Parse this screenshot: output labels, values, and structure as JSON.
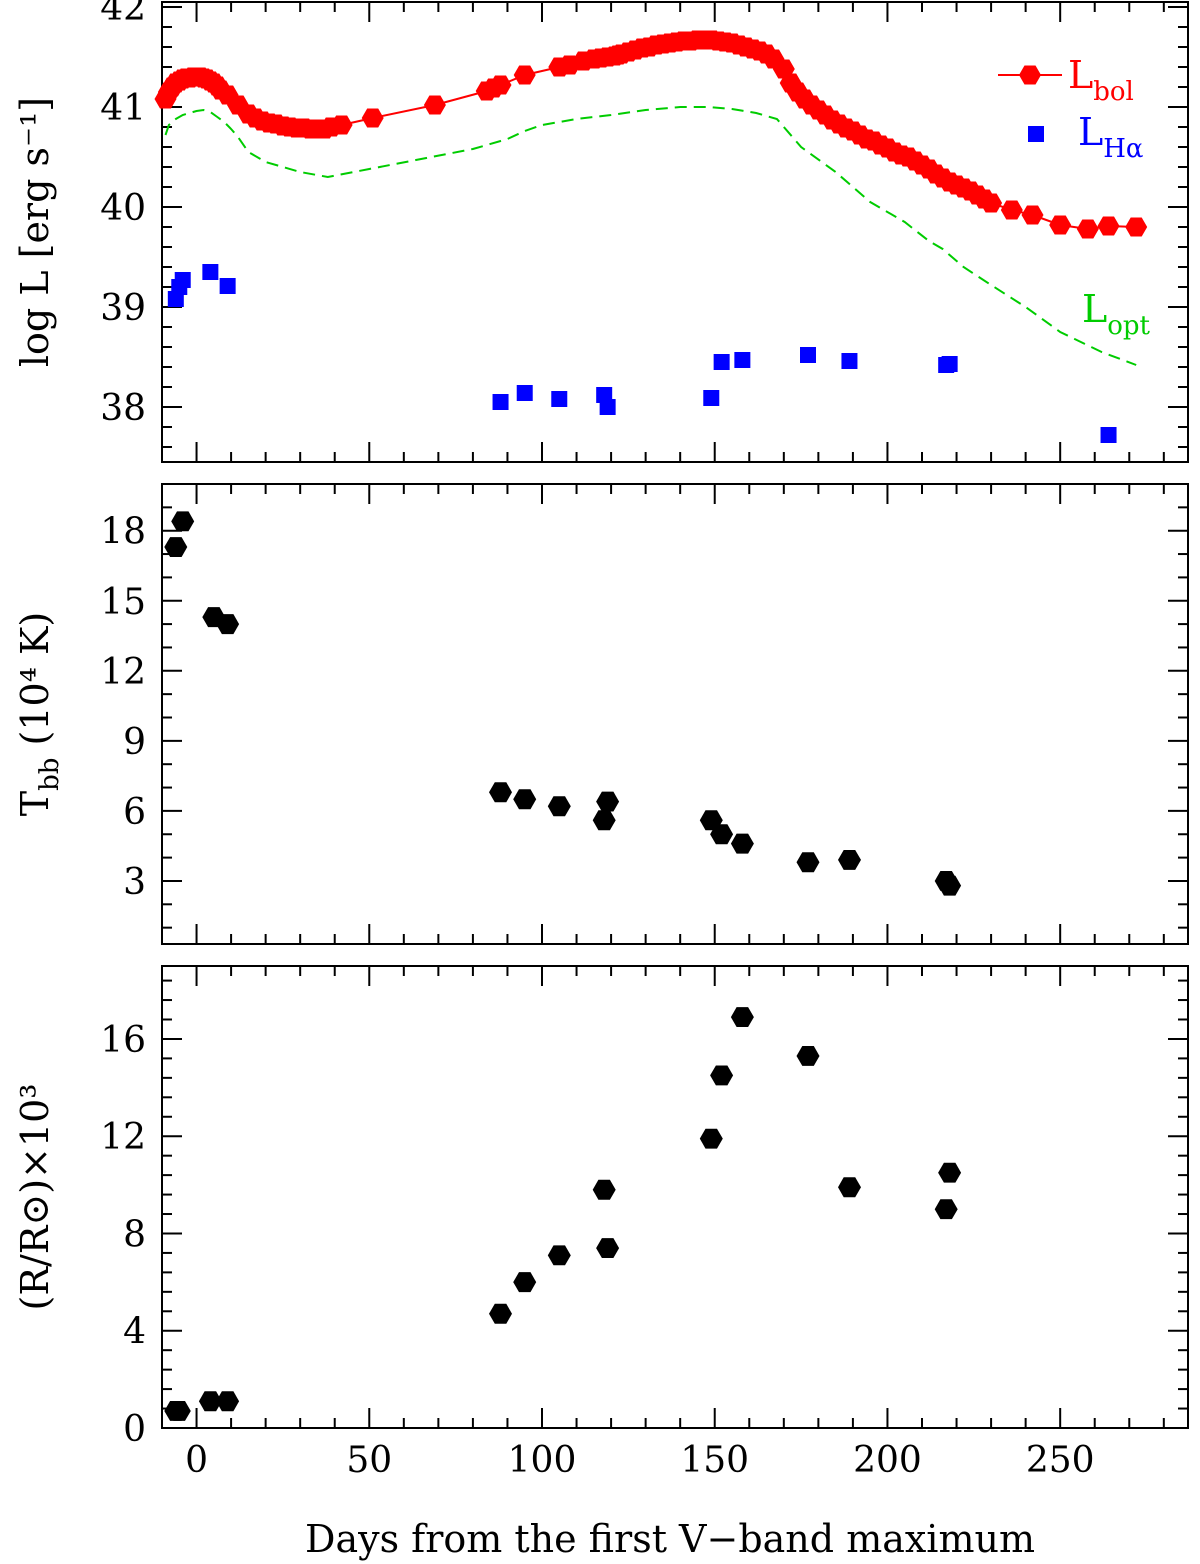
{
  "chart_data": [
    {
      "type": "scatter",
      "panel": "top",
      "ylabel": "log L [erg s⁻¹]",
      "xlim": [
        -10,
        287
      ],
      "ylim": [
        37.45,
        42.05
      ],
      "yticks": [
        38,
        39,
        40,
        41,
        42
      ],
      "xticks": [
        0,
        50,
        100,
        150,
        200,
        250
      ],
      "grid": false,
      "legend_position": "top-right",
      "colors": {
        "bol": "#ff0000",
        "halpha": "#0000ff",
        "opt": "#00cc00"
      },
      "series": [
        {
          "name": "L_bol",
          "legend_label": "L",
          "legend_sub": "bol",
          "style": "line-hexagon",
          "x": [
            -9,
            -8,
            -7,
            -6,
            -5,
            -4,
            -3,
            -2,
            -1,
            0,
            1,
            2,
            3,
            4,
            5,
            6,
            7,
            9,
            12,
            15,
            17,
            19,
            21,
            23,
            25,
            27,
            29,
            31,
            33,
            35,
            37,
            39,
            42,
            51,
            69,
            84,
            86,
            88,
            95,
            105,
            108,
            112,
            115,
            117,
            119,
            121,
            122,
            123,
            125,
            127,
            129,
            131,
            133,
            135,
            137,
            139,
            141,
            143,
            145,
            147,
            149,
            151,
            153,
            155,
            157,
            159,
            161,
            163,
            165,
            167,
            170,
            172,
            174,
            176,
            178,
            180,
            182,
            184,
            186,
            188,
            190,
            192,
            194,
            196,
            198,
            200,
            202,
            204,
            206,
            208,
            210,
            212,
            214,
            216,
            218,
            220,
            222,
            224,
            226,
            228,
            230,
            236,
            242,
            250,
            258,
            264,
            272
          ],
          "y": [
            41.08,
            41.15,
            41.2,
            41.24,
            41.26,
            41.28,
            41.29,
            41.29,
            41.3,
            41.3,
            41.3,
            41.29,
            41.28,
            41.26,
            41.24,
            41.21,
            41.17,
            41.12,
            41.02,
            40.93,
            40.89,
            40.86,
            40.84,
            40.83,
            40.81,
            40.8,
            40.79,
            40.79,
            40.78,
            40.78,
            40.78,
            40.8,
            40.82,
            40.89,
            41.02,
            41.16,
            41.19,
            41.22,
            41.32,
            41.4,
            41.42,
            41.46,
            41.48,
            41.49,
            41.5,
            41.51,
            41.52,
            41.53,
            41.55,
            41.57,
            41.59,
            41.6,
            41.62,
            41.63,
            41.64,
            41.65,
            41.66,
            41.66,
            41.67,
            41.67,
            41.67,
            41.66,
            41.65,
            41.64,
            41.62,
            41.6,
            41.58,
            41.56,
            41.53,
            41.48,
            41.38,
            41.24,
            41.15,
            41.08,
            41.02,
            40.97,
            40.92,
            40.87,
            40.83,
            40.79,
            40.76,
            40.72,
            40.68,
            40.66,
            40.62,
            40.59,
            40.55,
            40.52,
            40.5,
            40.46,
            40.42,
            40.38,
            40.33,
            40.29,
            40.25,
            40.22,
            40.19,
            40.16,
            40.12,
            40.08,
            40.04,
            39.97,
            39.92,
            39.82,
            39.78,
            39.81,
            39.8
          ]
        },
        {
          "name": "L_Hα",
          "legend_label": "L",
          "legend_sub": "Hα",
          "style": "square",
          "x": [
            -6,
            -5,
            -4,
            4,
            9,
            88,
            95,
            105,
            118,
            119,
            149,
            152,
            158,
            177,
            189,
            217,
            218,
            264
          ],
          "y": [
            39.08,
            39.2,
            39.27,
            39.35,
            39.21,
            38.05,
            38.14,
            38.08,
            38.12,
            38.0,
            38.09,
            38.45,
            38.47,
            38.52,
            38.46,
            38.42,
            38.43,
            37.72
          ]
        },
        {
          "name": "L_opt",
          "legend_label": "L",
          "legend_sub": "opt",
          "style": "dashed-line",
          "x": [
            -9,
            -8,
            -6,
            -4,
            -2,
            0,
            2,
            4,
            6,
            8,
            10,
            12,
            15,
            20,
            25,
            30,
            38,
            50,
            65,
            80,
            90,
            95,
            100,
            110,
            120,
            130,
            140,
            148,
            155,
            162,
            168,
            175,
            185,
            195,
            205,
            212,
            216,
            222,
            230,
            240,
            250,
            262,
            272
          ],
          "y": [
            40.72,
            40.82,
            40.88,
            40.92,
            40.94,
            40.96,
            40.97,
            40.95,
            40.9,
            40.85,
            40.78,
            40.7,
            40.55,
            40.45,
            40.4,
            40.35,
            40.3,
            40.38,
            40.48,
            40.58,
            40.68,
            40.76,
            40.82,
            40.88,
            40.92,
            40.97,
            41.0,
            41.0,
            40.98,
            40.94,
            40.88,
            40.6,
            40.35,
            40.05,
            39.85,
            39.66,
            39.58,
            39.4,
            39.22,
            39.0,
            38.75,
            38.55,
            38.42
          ]
        }
      ]
    },
    {
      "type": "scatter",
      "panel": "middle",
      "ylabel_main": "T",
      "ylabel_sub": "bb",
      "ylabel_rest": " (10⁴ K)",
      "xlim": [
        -10,
        287
      ],
      "ylim": [
        0.3,
        20.0
      ],
      "yticks": [
        3,
        6,
        9,
        12,
        15,
        18
      ],
      "xticks": [
        0,
        50,
        100,
        150,
        200,
        250
      ],
      "grid": false,
      "colors": {
        "points": "#000000"
      },
      "series": [
        {
          "style": "hexagon",
          "x": [
            -6,
            -4,
            5,
            9,
            88,
            95,
            105,
            118,
            119,
            149,
            152,
            158,
            177,
            189,
            217,
            218
          ],
          "y": [
            17.3,
            18.4,
            14.3,
            14.0,
            6.8,
            6.5,
            6.2,
            5.6,
            6.4,
            5.6,
            5.0,
            4.6,
            3.8,
            3.9,
            3.0,
            2.8
          ]
        }
      ]
    },
    {
      "type": "scatter",
      "panel": "bottom",
      "ylabel": "(R/R⊙)×10³",
      "xlabel": "Days from the first V−band maximum",
      "xlim": [
        -10,
        287
      ],
      "ylim": [
        0,
        19.0
      ],
      "yticks": [
        0,
        4,
        8,
        12,
        16
      ],
      "xticks": [
        0,
        50,
        100,
        150,
        200,
        250
      ],
      "grid": false,
      "colors": {
        "points": "#000000"
      },
      "series": [
        {
          "style": "hexagon",
          "x": [
            -6,
            -5,
            4,
            9,
            88,
            95,
            105,
            118,
            119,
            149,
            152,
            158,
            177,
            189,
            217,
            218
          ],
          "y": [
            0.7,
            0.7,
            1.1,
            1.1,
            4.7,
            6.0,
            7.1,
            9.8,
            7.4,
            11.9,
            14.5,
            16.9,
            15.3,
            9.9,
            9.0,
            10.5
          ]
        }
      ]
    }
  ]
}
